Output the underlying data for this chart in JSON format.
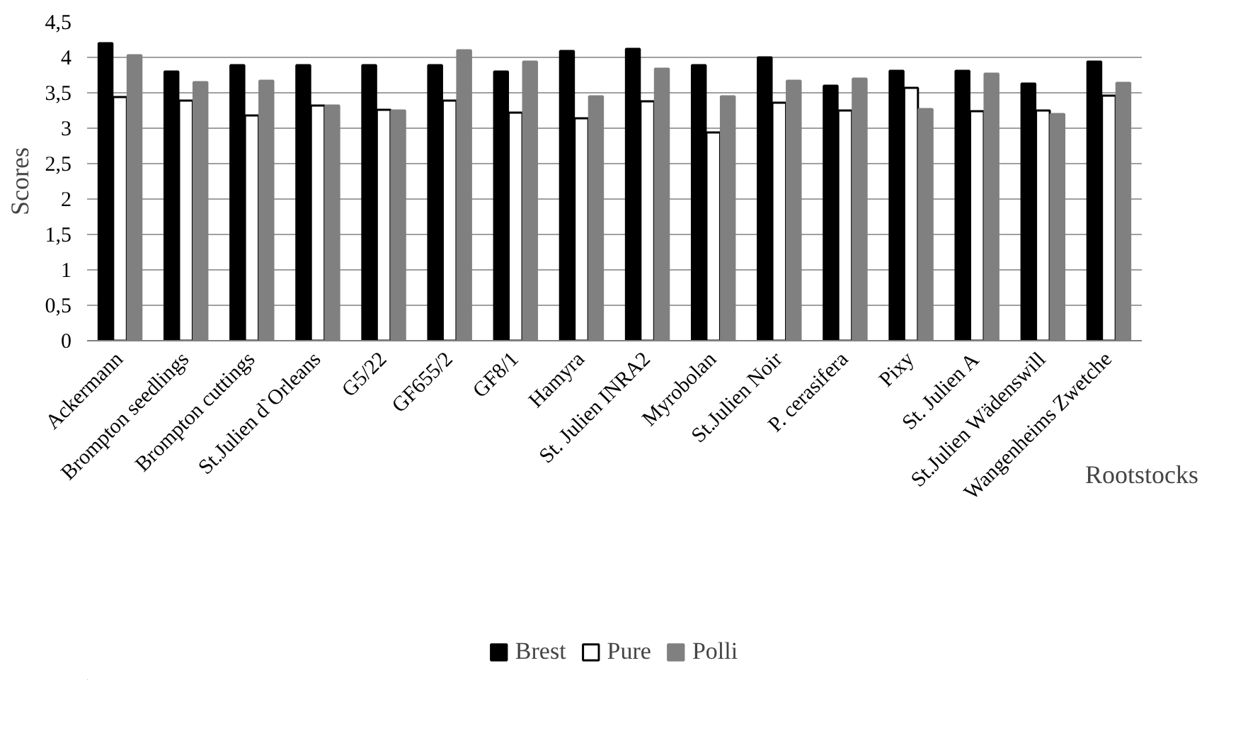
{
  "chart_data": {
    "type": "bar",
    "xlabel": "Rootstocks",
    "ylabel": "Scores",
    "categories": [
      "Ackermann",
      "Brompton seedlings",
      "Brompton cuttings",
      "St.Julien d`Orleans",
      "G5/22",
      "GF655/2",
      "GF8/1",
      "Hamyra",
      "St. Julien INRA2",
      "Myrobolan",
      "St.Julien Noir",
      "P. cerasifera",
      "Pixy",
      "St. Julien A",
      "St.Julien Wädenswill",
      "Wangenheims Zwetche"
    ],
    "series": [
      {
        "name": "Brest",
        "color": "#000000",
        "values": [
          4.2,
          3.8,
          3.89,
          3.89,
          3.89,
          3.89,
          3.8,
          4.09,
          4.12,
          3.89,
          4.0,
          3.6,
          3.81,
          3.81,
          3.63,
          3.94
        ]
      },
      {
        "name": "Pure",
        "color": "#ffffff",
        "values": [
          3.44,
          3.39,
          3.18,
          3.32,
          3.26,
          3.39,
          3.22,
          3.14,
          3.38,
          2.94,
          3.36,
          3.25,
          3.57,
          3.24,
          3.25,
          3.46
        ]
      },
      {
        "name": "Polli",
        "color": "#808080",
        "values": [
          4.03,
          3.65,
          3.67,
          3.32,
          3.25,
          4.1,
          3.94,
          3.45,
          3.84,
          3.45,
          3.67,
          3.7,
          3.27,
          3.77,
          3.2,
          3.64
        ]
      }
    ],
    "ylim": [
      0,
      4.5
    ],
    "yticks": [
      0,
      {
        "value": 0.5,
        "label": "0,5"
      },
      1,
      {
        "value": 1.5,
        "label": "1,5"
      },
      2,
      {
        "value": 2.5,
        "label": "2,5"
      },
      3,
      {
        "value": 3.5,
        "label": "3,5"
      },
      4,
      {
        "value": 4.5,
        "label": "4,5"
      }
    ],
    "grid": "y",
    "legend": "bottom"
  }
}
